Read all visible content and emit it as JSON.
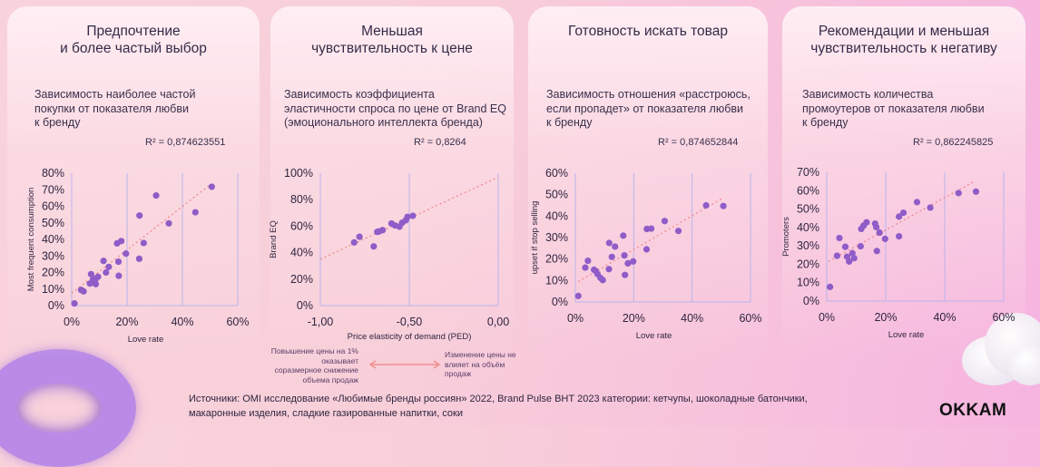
{
  "colors": {
    "point": "#8f5cc8",
    "trend": "#f08a8a",
    "grid": "#b9b4ec",
    "accent_arrow": "#f08f8f"
  },
  "cards": [
    {
      "title": "Предпочтение\nи более частый выбор",
      "subtitle": "Зависимость наиболее частой\nпокупки от показателя любви\nк бренду",
      "r2": "R² = 0,874623551"
    },
    {
      "title": "Меньшая\nчувствительность к цене",
      "subtitle": "Зависимость коэффициента\nэластичности спроса по цене от Brand EQ\n(эмоционального интеллекта бренда)",
      "r2": "R² = 0,8264"
    },
    {
      "title": "Готовность искать товар",
      "subtitle": "Зависимость отношения «расстроюсь,\nесли пропадет» от показателя любви\nк бренду",
      "r2": "R² = 0,874652844"
    },
    {
      "title": "Рекомендации и меньшая\nчувствительность к негативу",
      "subtitle": "Зависимость количества\nпромоутеров от показателя любви\nк бренду",
      "r2": "R² = 0,862245825"
    }
  ],
  "notes": {
    "left": "Повышение цены на 1%\nоказывает\nсоразмерное снижение\nобъема продаж",
    "right": "Изменение цены не\nвлияет на объём\nпродаж"
  },
  "footer": "Источники: OMI исследование «Любимые бренды россиян» 2022,  Brand Pulse ВНТ 2023 категории: кетчупы, шоколадные батончики,\nмакаронные изделия, сладкие газированные напитки, соки",
  "logo": "OKKAM",
  "chart_data": [
    {
      "type": "scatter",
      "xlabel": "Love rate",
      "ylabel": "Most frequent consumption",
      "xlim": [
        0,
        60
      ],
      "ylim": [
        0,
        80
      ],
      "xticks": [
        "0%",
        "20%",
        "40%",
        "60%"
      ],
      "yticks": [
        "0%",
        "10%",
        "20%",
        "30%",
        "40%",
        "50%",
        "60%",
        "70%",
        "80%"
      ],
      "grid": "vertical",
      "points": [
        [
          1,
          1.3
        ],
        [
          3.4,
          9.5
        ],
        [
          4.3,
          8.6
        ],
        [
          7,
          19
        ],
        [
          6.6,
          13.3
        ],
        [
          7.7,
          15.5
        ],
        [
          8.7,
          13
        ],
        [
          8.8,
          16.4
        ],
        [
          9.5,
          17.4
        ],
        [
          11.5,
          27
        ],
        [
          12.4,
          20
        ],
        [
          13.4,
          23.4
        ],
        [
          16.4,
          37.6
        ],
        [
          17.9,
          39
        ],
        [
          16.9,
          26.5
        ],
        [
          17,
          18
        ],
        [
          19.6,
          31.4
        ],
        [
          24.5,
          54.4
        ],
        [
          24.4,
          28.3
        ],
        [
          26,
          37.8
        ],
        [
          30.5,
          66.5
        ],
        [
          35.1,
          49.7
        ],
        [
          44.7,
          56.4
        ],
        [
          50.6,
          71.8
        ]
      ],
      "trendline": [
        [
          0,
          7.5
        ],
        [
          50,
          73
        ]
      ]
    },
    {
      "type": "scatter",
      "xlabel": "Price elasticity of demand (PED)",
      "ylabel": "Brand EQ",
      "xlim": [
        -1,
        0
      ],
      "ylim": [
        0,
        100
      ],
      "xticks": [
        "-1,00",
        "-0,50",
        "0,00"
      ],
      "yticks": [
        "0%",
        "20%",
        "40%",
        "60%",
        "80%",
        "100%"
      ],
      "grid": "vertical",
      "points": [
        [
          -0.81,
          47.7
        ],
        [
          -0.78,
          52
        ],
        [
          -0.7,
          44.7
        ],
        [
          -0.68,
          55.7
        ],
        [
          -0.67,
          56
        ],
        [
          -0.65,
          57
        ],
        [
          -0.6,
          62
        ],
        [
          -0.58,
          60.5
        ],
        [
          -0.555,
          59.6
        ],
        [
          -0.54,
          62.6
        ],
        [
          -0.52,
          64.4
        ],
        [
          -0.51,
          67
        ],
        [
          -0.48,
          67.8
        ]
      ],
      "trendline": [
        [
          -1,
          35
        ],
        [
          0,
          97
        ]
      ]
    },
    {
      "type": "scatter",
      "xlabel": "Love rate",
      "ylabel": "upset if stop selling",
      "xlim": [
        0,
        60
      ],
      "ylim": [
        0,
        60
      ],
      "xticks": [
        "0%",
        "20%",
        "40%",
        "60%"
      ],
      "yticks": [
        "0%",
        "10%",
        "20%",
        "30%",
        "40%",
        "50%",
        "60%"
      ],
      "grid": "vertical",
      "points": [
        [
          1,
          2.8
        ],
        [
          3.4,
          16
        ],
        [
          4.3,
          19.2
        ],
        [
          6.4,
          15
        ],
        [
          7,
          14.4
        ],
        [
          7.6,
          13
        ],
        [
          8.6,
          11.2
        ],
        [
          9.4,
          10.2
        ],
        [
          11.5,
          15.3
        ],
        [
          11.6,
          27.5
        ],
        [
          12.5,
          21
        ],
        [
          13.6,
          25.8
        ],
        [
          16.4,
          30.9
        ],
        [
          16.8,
          21.7
        ],
        [
          17,
          12.6
        ],
        [
          18,
          18
        ],
        [
          19.8,
          18.9
        ],
        [
          24.4,
          24.5
        ],
        [
          24.5,
          34
        ],
        [
          26,
          34.2
        ],
        [
          30.6,
          37.7
        ],
        [
          35.3,
          33.1
        ],
        [
          44.8,
          45
        ],
        [
          50.7,
          44.7
        ]
      ],
      "trendline": [
        [
          1,
          9.5
        ],
        [
          50,
          48
        ]
      ]
    },
    {
      "type": "scatter",
      "xlabel": "Love rate",
      "ylabel": "Promoters",
      "xlim": [
        0,
        60
      ],
      "ylim": [
        0,
        70
      ],
      "xticks": [
        "0%",
        "20%",
        "40%",
        "60%"
      ],
      "yticks": [
        "0%",
        "10%",
        "20%",
        "30%",
        "40%",
        "50%",
        "60%",
        "70%"
      ],
      "grid": "vertical",
      "points": [
        [
          1.1,
          7.7
        ],
        [
          3.5,
          24.6
        ],
        [
          4.3,
          34.3
        ],
        [
          6.3,
          29.5
        ],
        [
          6.9,
          24.1
        ],
        [
          7.6,
          21.5
        ],
        [
          8.7,
          26
        ],
        [
          9.3,
          23.3
        ],
        [
          11.5,
          29.8
        ],
        [
          11.7,
          39.2
        ],
        [
          12.5,
          41
        ],
        [
          13.5,
          42.8
        ],
        [
          16.4,
          42.1
        ],
        [
          16.8,
          40.2
        ],
        [
          17,
          27.2
        ],
        [
          17.9,
          37.2
        ],
        [
          19.8,
          33.8
        ],
        [
          24.5,
          35.2
        ],
        [
          24.5,
          45.9
        ],
        [
          26,
          48
        ],
        [
          30.6,
          53.8
        ],
        [
          35.1,
          50.8
        ],
        [
          44.7,
          58.7
        ],
        [
          50.6,
          59.5
        ]
      ],
      "trendline": [
        [
          0.5,
          21.5
        ],
        [
          50,
          65
        ]
      ]
    }
  ]
}
